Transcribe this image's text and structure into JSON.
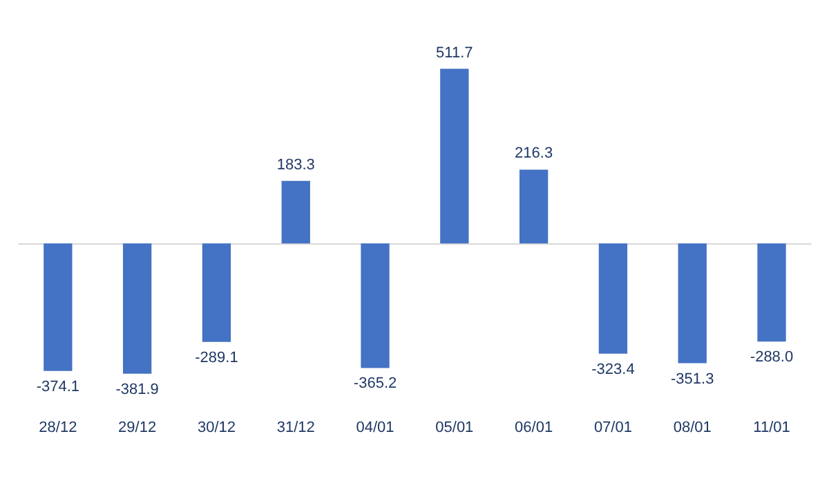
{
  "chart_data": {
    "type": "bar",
    "categories": [
      "28/12",
      "29/12",
      "30/12",
      "31/12",
      "04/01",
      "05/01",
      "06/01",
      "07/01",
      "08/01",
      "11/01"
    ],
    "values": [
      -374.1,
      -381.9,
      -289.1,
      183.3,
      -365.2,
      511.7,
      216.3,
      -323.4,
      -351.3,
      -288.0
    ],
    "value_labels": [
      "-374.1",
      "-381.9",
      "-289.1",
      "183.3",
      "-365.2",
      "511.7",
      "216.3",
      "-323.4",
      "-351.3",
      "-288.0"
    ],
    "color": "#4472c4",
    "data_labels": true,
    "grid": false,
    "legend": false
  }
}
